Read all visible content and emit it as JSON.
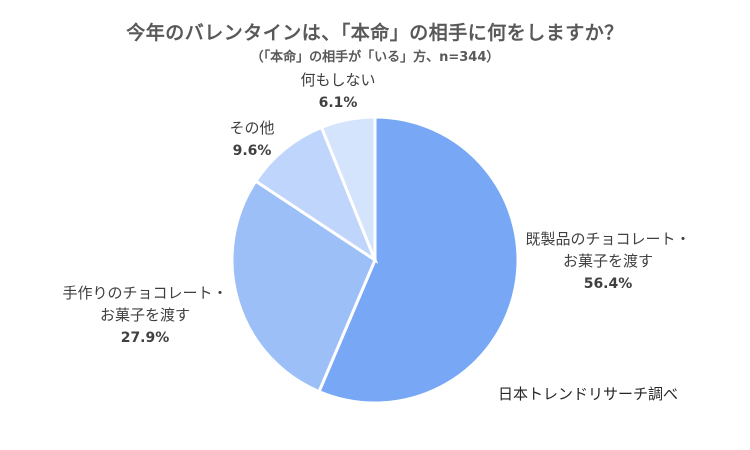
{
  "chart_data": {
    "type": "pie",
    "title": "今年のバレンタインは、「本命」の相手に何をしますか？",
    "subtitle": "（「本命」の相手が「いる」方、n=344）",
    "slices": [
      {
        "name": "既製品のチョコレート・お菓子を渡す",
        "name_lines": [
          "既製品のチョコレート・",
          "お菓子を渡す"
        ],
        "value": 56.4,
        "value_label": "56.4%",
        "color": "#78a8f5"
      },
      {
        "name": "手作りのチョコレート・お菓子を渡す",
        "name_lines": [
          "手作りのチョコレート・",
          "お菓子を渡す"
        ],
        "value": 27.9,
        "value_label": "27.9%",
        "color": "#9cbff8"
      },
      {
        "name": "その他",
        "name_lines": [
          "その他"
        ],
        "value": 9.6,
        "value_label": "9.6%",
        "color": "#bfd5fb"
      },
      {
        "name": "何もしない",
        "name_lines": [
          "何もしない"
        ],
        "value": 6.1,
        "value_label": "6.1%",
        "color": "#d5e4fd"
      }
    ],
    "start": "12 o'clock",
    "direction": "clockwise",
    "labels": "outside"
  },
  "source": "日本トレンドリサーチ調べ"
}
